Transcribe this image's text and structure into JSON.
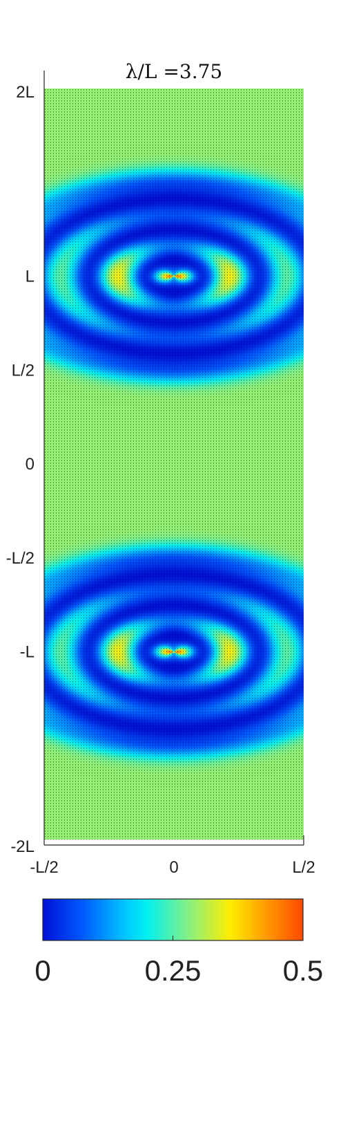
{
  "chart_data": {
    "type": "heatmap",
    "title": "λ/L =3.75",
    "x_tick_labels": [
      "-L/2",
      "0",
      "L/2"
    ],
    "y_tick_labels": [
      "2L",
      "L",
      "L/2",
      "0",
      "-L/2",
      "-L",
      "-2L"
    ],
    "x_range_L": [
      -0.5,
      0.5
    ],
    "y_range_L": [
      -2,
      2
    ],
    "y_tick_values_L": [
      2,
      1,
      0.5,
      0,
      -0.5,
      -1,
      -2
    ],
    "x_tick_values_L": [
      -0.5,
      0,
      0.5
    ],
    "field_max_locations_L": [
      [
        0,
        1
      ],
      [
        0,
        -1
      ]
    ],
    "colorbar": {
      "range": [
        0,
        0.5
      ],
      "tick_values": [
        0,
        0.25,
        0.5
      ],
      "tick_labels": [
        "0",
        "0.25",
        "0.5"
      ],
      "colormap": "jet"
    },
    "vector_overlay": true,
    "grid": false
  }
}
